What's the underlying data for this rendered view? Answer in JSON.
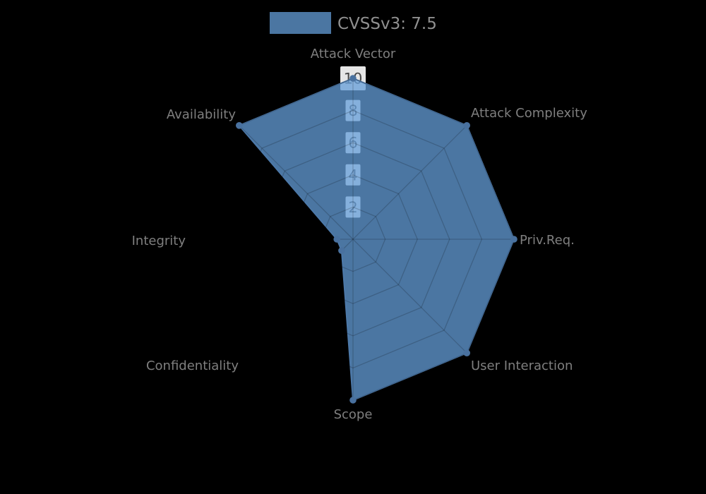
{
  "legend": {
    "label": "CVSSv3: 7.5",
    "swatch_color": "#4d79a9"
  },
  "chart_data": {
    "type": "radar",
    "title": "",
    "axes": [
      "Attack Vector",
      "Attack Complexity",
      "Priv.Req.",
      "User Interaction",
      "Scope",
      "Confidentiality",
      "Integrity",
      "Availability"
    ],
    "series": [
      {
        "name": "CVSSv3: 7.5",
        "values": [
          10,
          10,
          10,
          10,
          10,
          1,
          1,
          10
        ]
      }
    ],
    "radial_ticks": [
      2,
      4,
      6,
      8,
      10
    ],
    "range": [
      0,
      10
    ],
    "grid": true,
    "grid_shape": "octagon",
    "legend_position": "top-center",
    "colors": {
      "fill": "#4d79a9",
      "fill_rgba": "rgba(100,158,216,0.75)",
      "stroke": "#4d79a9",
      "marker": "#49719f",
      "grid_line": "rgba(0,0,0,0.18)",
      "tick_box": "rgba(255,255,255,0.9)",
      "tick_text": "#474747",
      "axis_text": "#7f7f7f",
      "legend_text": "#909090",
      "background": "#000000"
    }
  }
}
